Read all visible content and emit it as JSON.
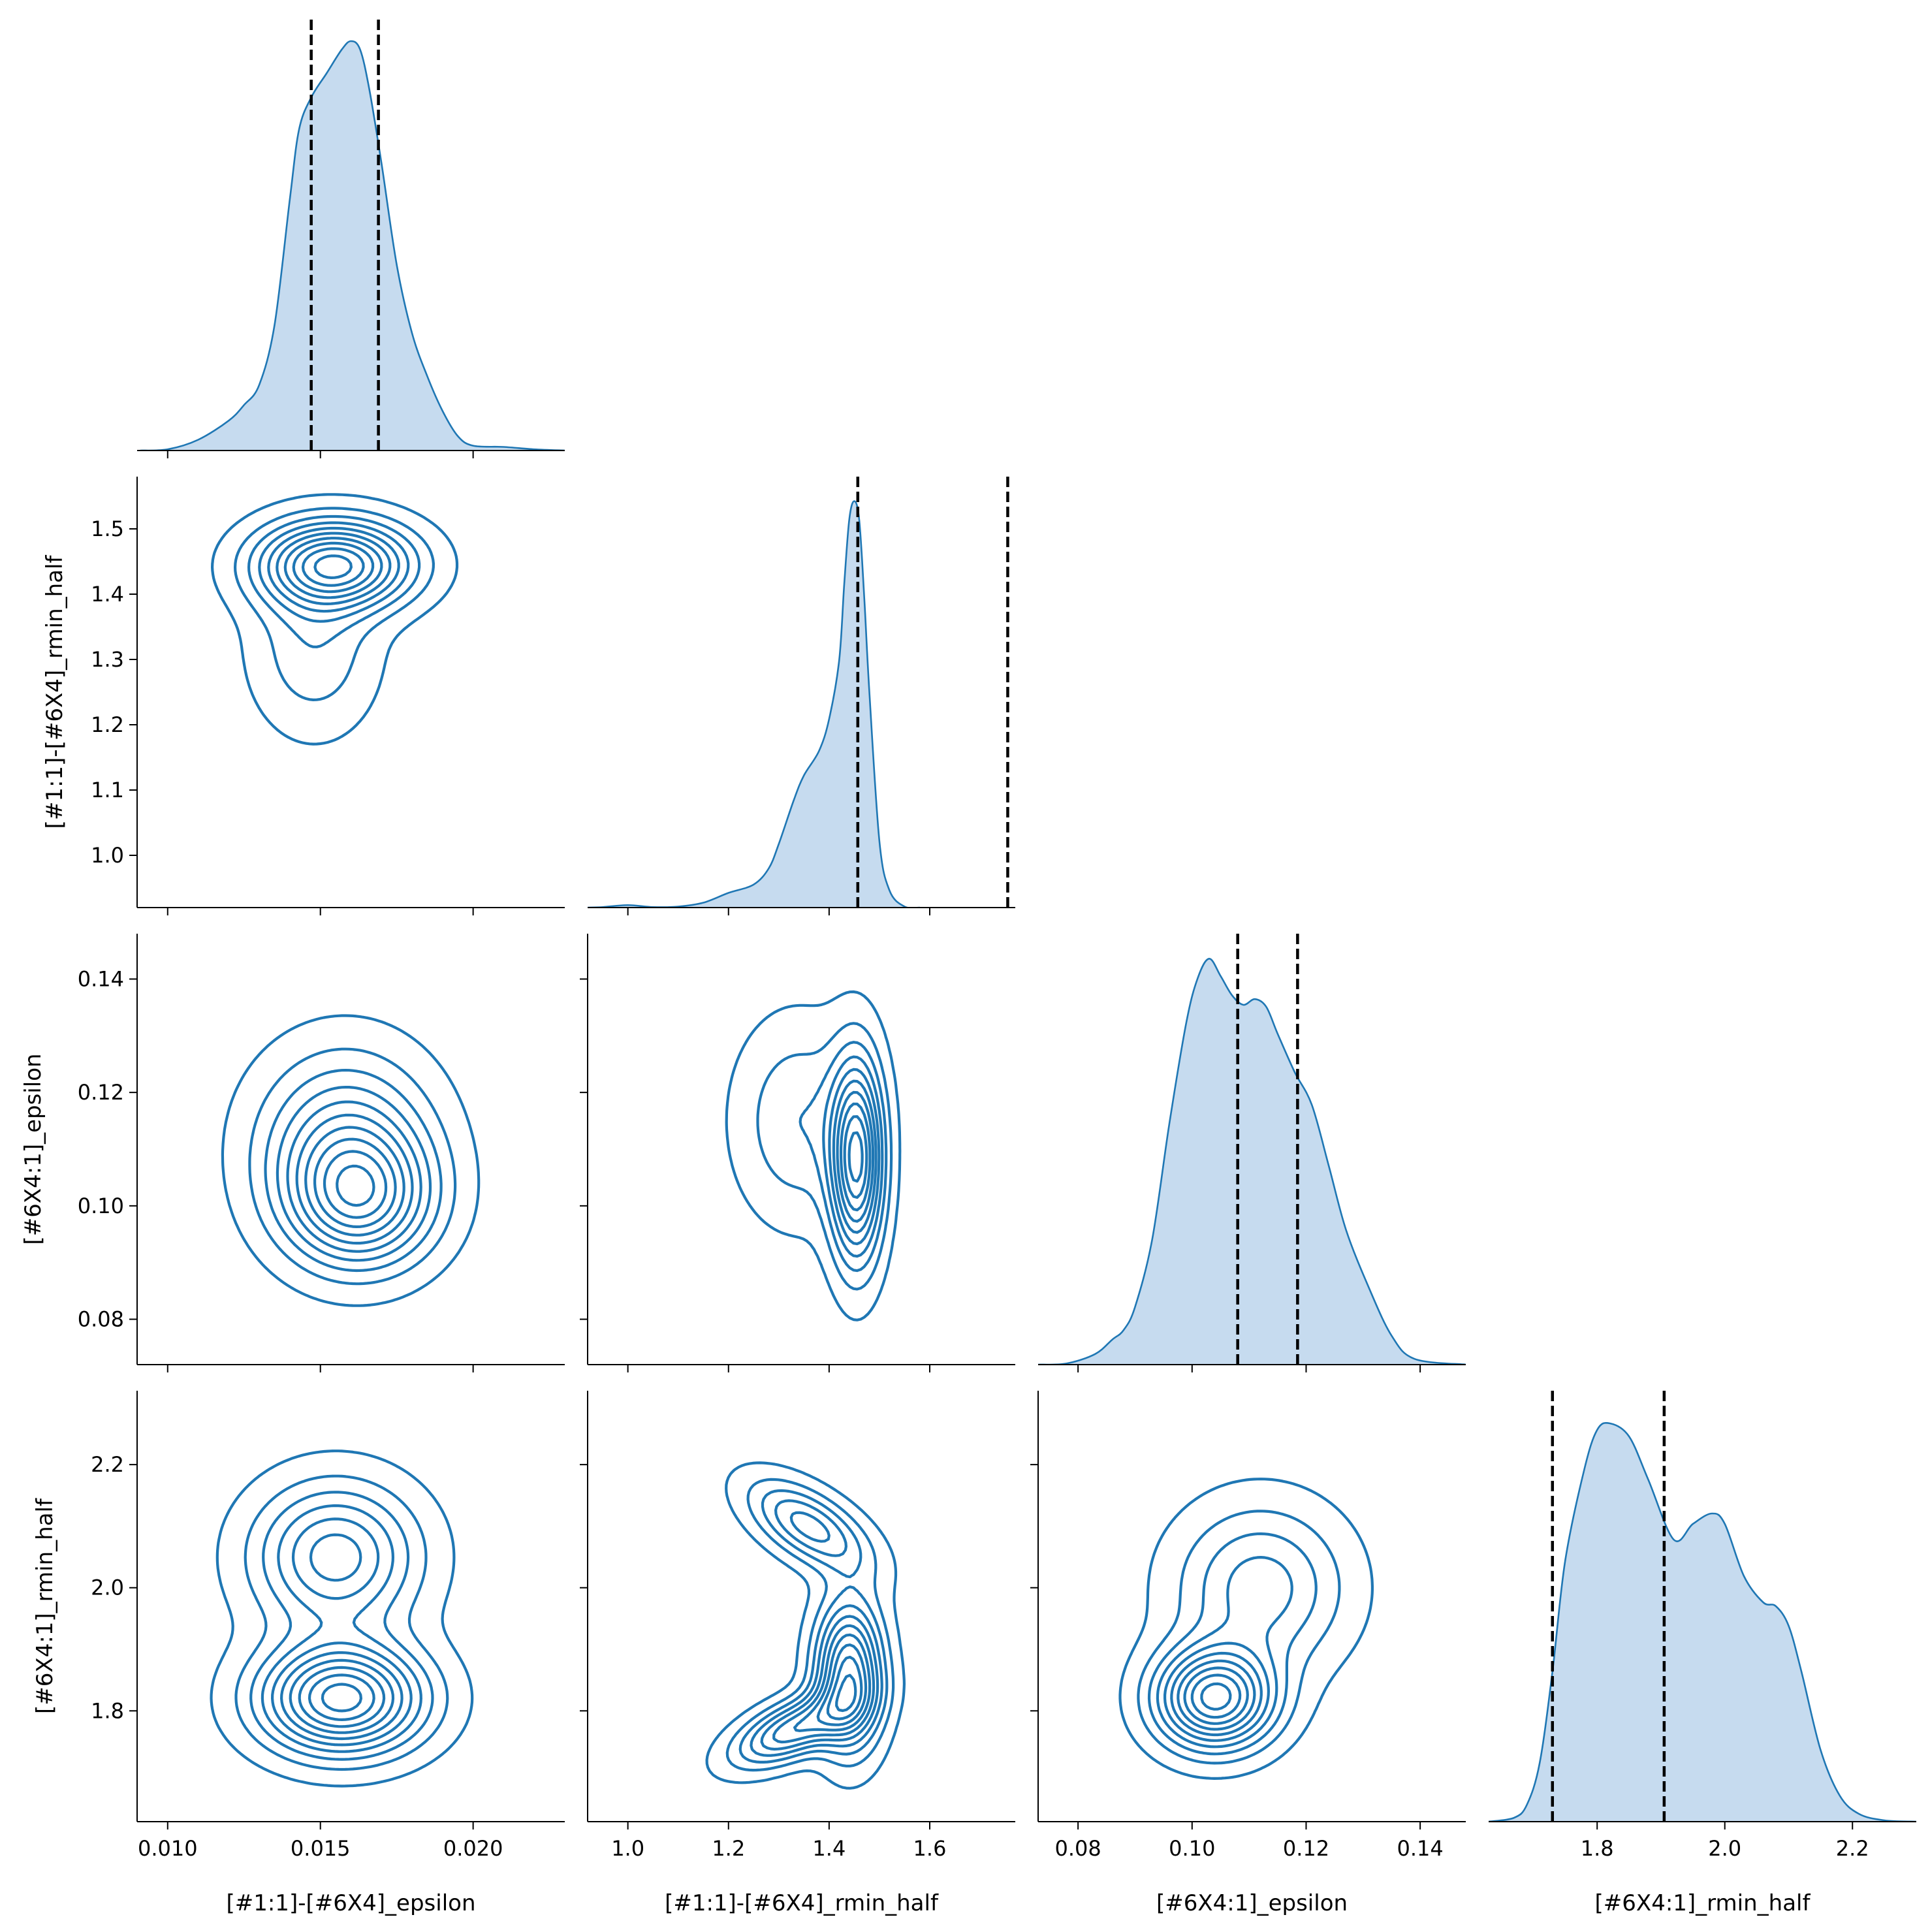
{
  "chart_data": {
    "type": "pairplot",
    "variables": [
      "[#1:1]-[#6X4]_epsilon",
      "[#1:1]-[#6X4]_rmin_half",
      "[#6X4:1]_epsilon",
      "[#6X4:1]_rmin_half"
    ],
    "layout": "lower-triangle corner plot",
    "diagonal": "kde (filled)",
    "off_diagonal": "kde contours",
    "color": "#1f77b4",
    "fill_color": "#c6dbef",
    "reference_line_color": "#000000",
    "axes": {
      "x_ranges": [
        [
          0.009,
          0.023
        ],
        [
          0.92,
          1.77
        ],
        [
          0.073,
          0.148
        ],
        [
          1.63,
          2.3
        ]
      ],
      "y_ranges": [
        null,
        [
          0.92,
          1.58
        ],
        [
          0.072,
          0.148
        ],
        [
          1.62,
          2.32
        ]
      ],
      "x_ticks": [
        [
          "0.010",
          "0.015",
          "0.020"
        ],
        [
          "1.0",
          "1.2",
          "1.4",
          "1.6"
        ],
        [
          "0.08",
          "0.10",
          "0.12",
          "0.14"
        ],
        [
          "1.8",
          "2.0",
          "2.2"
        ]
      ],
      "y_ticks": [
        [],
        [
          "1.0",
          "1.1",
          "1.2",
          "1.3",
          "1.4",
          "1.5"
        ],
        [
          "0.08",
          "0.10",
          "0.12",
          "0.14"
        ],
        [
          "1.8",
          "2.0",
          "2.2"
        ]
      ]
    },
    "diagonals": [
      {
        "variable": "[#1:1]-[#6X4]_epsilon",
        "reference_lines": [
          0.0147,
          0.0169
        ],
        "x": [
          0.0091,
          0.01,
          0.011,
          0.012,
          0.0125,
          0.013,
          0.0135,
          0.014,
          0.0143,
          0.0147,
          0.0152,
          0.0157,
          0.016,
          0.0163,
          0.0166,
          0.017,
          0.0175,
          0.018,
          0.0185,
          0.019,
          0.0195,
          0.02,
          0.021,
          0.022,
          0.023
        ],
        "density": [
          0.0,
          0.01,
          0.09,
          0.25,
          0.38,
          0.55,
          1.05,
          2.1,
          2.68,
          2.95,
          3.15,
          3.35,
          3.42,
          3.35,
          3.02,
          2.4,
          1.55,
          0.98,
          0.62,
          0.33,
          0.12,
          0.04,
          0.03,
          0.01,
          0.0
        ],
        "ylim": [
          0,
          3.6
        ]
      },
      {
        "variable": "[#1:1]-[#6X4]_rmin_half",
        "reference_lines": [
          1.457,
          1.755
        ],
        "x": [
          0.92,
          0.95,
          1.0,
          1.05,
          1.1,
          1.15,
          1.2,
          1.25,
          1.28,
          1.3,
          1.33,
          1.35,
          1.38,
          1.4,
          1.42,
          1.43,
          1.44,
          1.45,
          1.46,
          1.47,
          1.48,
          1.5,
          1.52,
          1.55,
          1.58
        ],
        "density": [
          0.0,
          0.01,
          0.05,
          0.01,
          0.02,
          0.1,
          0.3,
          0.47,
          0.8,
          1.3,
          2.2,
          2.7,
          3.2,
          3.85,
          5.05,
          6.6,
          7.92,
          8.3,
          7.9,
          6.3,
          4.4,
          1.35,
          0.35,
          0.02,
          0.0
        ],
        "ylim": [
          0,
          8.8
        ]
      },
      {
        "variable": "[#6X4:1]_epsilon",
        "reference_lines": [
          0.108,
          0.1185
        ],
        "x": [
          0.073,
          0.078,
          0.083,
          0.086,
          0.088,
          0.09,
          0.093,
          0.096,
          0.099,
          0.101,
          0.103,
          0.105,
          0.107,
          0.109,
          0.111,
          0.113,
          0.115,
          0.118,
          0.121,
          0.124,
          0.127,
          0.131,
          0.135,
          0.139,
          0.148
        ],
        "density": [
          0.0,
          0.06,
          0.55,
          1.3,
          1.8,
          3.0,
          6.5,
          12.5,
          17.8,
          20.1,
          21.1,
          20.2,
          19.2,
          18.7,
          19.0,
          18.6,
          17.2,
          15.2,
          13.5,
          10.3,
          7.0,
          4.0,
          1.5,
          0.3,
          0.0
        ],
        "ylim": [
          0,
          22.4
        ]
      },
      {
        "variable": "[#6X4:1]_rmin_half",
        "reference_lines": [
          1.73,
          1.905
        ],
        "x": [
          1.63,
          1.67,
          1.69,
          1.71,
          1.73,
          1.75,
          1.78,
          1.8,
          1.82,
          1.85,
          1.88,
          1.92,
          1.95,
          1.98,
          2.0,
          2.03,
          2.06,
          2.08,
          2.1,
          2.12,
          2.15,
          2.18,
          2.21,
          2.25,
          2.3
        ],
        "density": [
          0.0,
          0.03,
          0.13,
          0.45,
          1.15,
          2.0,
          2.7,
          3.0,
          3.05,
          2.95,
          2.62,
          2.16,
          2.28,
          2.36,
          2.28,
          1.88,
          1.68,
          1.65,
          1.5,
          1.15,
          0.55,
          0.2,
          0.06,
          0.01,
          0.0
        ],
        "ylim": [
          0,
          3.3
        ]
      }
    ],
    "joint_densities": [
      {
        "x": "[#1:1]-[#6X4]_epsilon",
        "y": "[#1:1]-[#6X4]_rmin_half",
        "components": [
          {
            "mean": [
              0.0155,
              1.445
            ],
            "sd": [
              0.0017,
              0.045
            ],
            "rho": 0.0,
            "weight": 0.7
          },
          {
            "mean": [
              0.0148,
              1.32
            ],
            "sd": [
              0.0014,
              0.09
            ],
            "rho": 0.0,
            "weight": 0.3
          }
        ],
        "levels": 10
      },
      {
        "x": "[#1:1]-[#6X4]_epsilon",
        "y": "[#6X4:1]_epsilon",
        "components": [
          {
            "mean": [
              0.0158,
              0.111
            ],
            "sd": [
              0.0019,
              0.011
            ],
            "rho": 0.0,
            "weight": 0.55
          },
          {
            "mean": [
              0.0163,
              0.101
            ],
            "sd": [
              0.0016,
              0.008
            ],
            "rho": 0.0,
            "weight": 0.45
          }
        ],
        "levels": 10
      },
      {
        "x": "[#1:1]-[#6X4]_rmin_half",
        "y": "[#6X4:1]_epsilon",
        "components": [
          {
            "mean": [
              1.455,
              0.108
            ],
            "sd": [
              0.035,
              0.012
            ],
            "rho": 0.0,
            "weight": 0.6
          },
          {
            "mean": [
              1.34,
              0.115
            ],
            "sd": [
              0.085,
              0.012
            ],
            "rho": 0.0,
            "weight": 0.4
          }
        ],
        "levels": 10
      },
      {
        "x": "[#1:1]-[#6X4]_epsilon",
        "y": "[#6X4:1]_rmin_half",
        "components": [
          {
            "mean": [
              0.0157,
              1.82
            ],
            "sd": [
              0.0018,
              0.06
            ],
            "rho": 0.0,
            "weight": 0.55
          },
          {
            "mean": [
              0.0155,
              2.05
            ],
            "sd": [
              0.0018,
              0.08
            ],
            "rho": 0.0,
            "weight": 0.45
          }
        ],
        "levels": 10
      },
      {
        "x": "[#1:1]-[#6X4]_rmin_half",
        "y": "[#6X4:1]_rmin_half",
        "components": [
          {
            "mean": [
              1.44,
              1.86
            ],
            "sd": [
              0.045,
              0.08
            ],
            "rho": 0.0,
            "weight": 0.5
          },
          {
            "mean": [
              1.33,
              1.77
            ],
            "sd": [
              0.08,
              0.04
            ],
            "rho": 0.6,
            "weight": 0.25
          },
          {
            "mean": [
              1.36,
              2.1
            ],
            "sd": [
              0.08,
              0.05
            ],
            "rho": -0.6,
            "weight": 0.25
          }
        ],
        "levels": 10
      },
      {
        "x": "[#6X4:1]_epsilon",
        "y": "[#6X4:1]_rmin_half",
        "components": [
          {
            "mean": [
              0.104,
              1.82
            ],
            "sd": [
              0.007,
              0.055
            ],
            "rho": 0.0,
            "weight": 0.5
          },
          {
            "mean": [
              0.112,
              2.0
            ],
            "sd": [
              0.01,
              0.09
            ],
            "rho": 0.0,
            "weight": 0.5
          }
        ],
        "levels": 10
      }
    ]
  }
}
